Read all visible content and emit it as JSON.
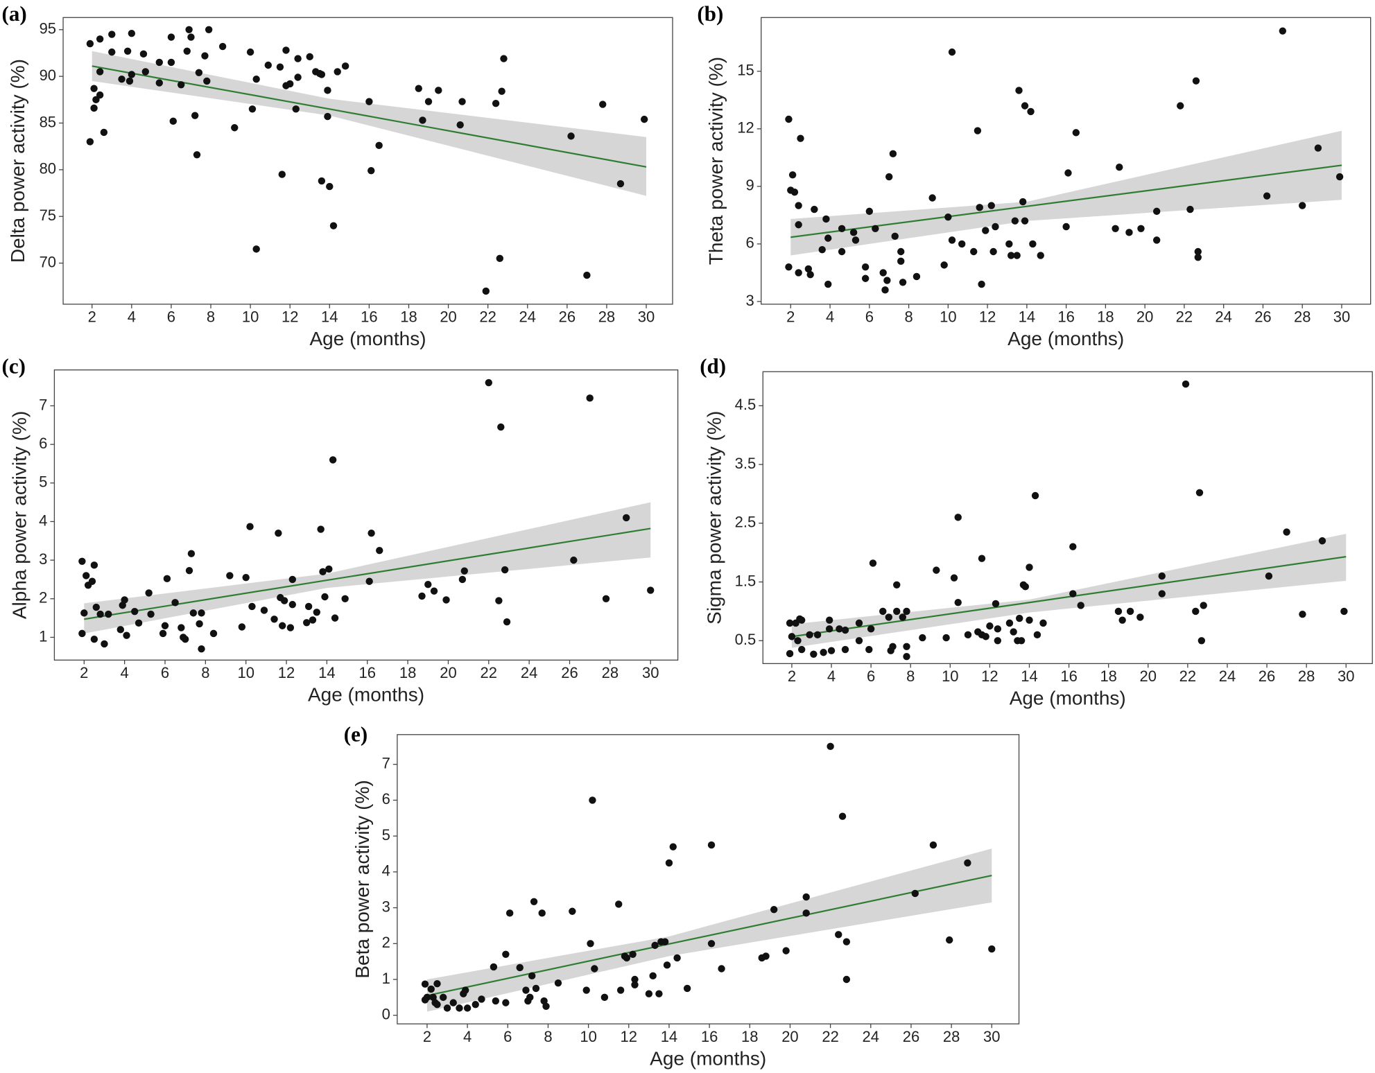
{
  "chart_data": [
    {
      "type": "scatter",
      "label": "(a)",
      "xlabel": "Age (months)",
      "ylabel": "Delta power activity (%)",
      "color": "#111111",
      "xlim": [
        0.54,
        31.33
      ],
      "ylim": [
        65.6,
        96.3
      ],
      "xticks": [
        2,
        4,
        6,
        8,
        10,
        12,
        14,
        16,
        18,
        20,
        22,
        24,
        26,
        28,
        30
      ],
      "yticks": [
        70,
        75,
        80,
        85,
        90,
        95
      ],
      "x": [
        1.9,
        1.9,
        2.1,
        2.1,
        2.2,
        2.4,
        2.4,
        2.4,
        2.6,
        3,
        3,
        3.5,
        3.8,
        3.9,
        4,
        4,
        4.6,
        4.7,
        5.4,
        5.4,
        6,
        6,
        6.1,
        6.5,
        6.8,
        6.9,
        7,
        7.2,
        7.3,
        7.4,
        7.7,
        7.8,
        7.9,
        8.6,
        9.2,
        10,
        10.1,
        10.3,
        10.3,
        10.9,
        11.5,
        11.6,
        11.8,
        11.8,
        12,
        12.3,
        12.4,
        12.4,
        13,
        13.3,
        13.5,
        13.6,
        13.6,
        13.9,
        13.9,
        14,
        14.2,
        14.4,
        14.8,
        16,
        16.1,
        16.5,
        18.5,
        18.7,
        19,
        19.5,
        20.6,
        20.7,
        21.9,
        22.4,
        22.6,
        22.7,
        22.8,
        26.2,
        27,
        27.8,
        28.7,
        29.9
      ],
      "values": [
        93.5,
        83,
        88.7,
        86.6,
        87.5,
        94,
        90.5,
        88,
        84,
        94.5,
        92.6,
        89.7,
        92.7,
        89.5,
        90.2,
        94.6,
        92.4,
        90.5,
        91.5,
        89.3,
        94.2,
        91.5,
        85.2,
        89.1,
        92.7,
        95,
        94.2,
        85.8,
        81.6,
        90.4,
        92.2,
        89.5,
        95,
        93.2,
        84.5,
        92.6,
        86.5,
        71.5,
        89.7,
        91.2,
        91,
        79.5,
        92.8,
        89,
        89.2,
        86.5,
        91.9,
        89.9,
        92.1,
        90.5,
        90.3,
        90.2,
        78.8,
        85.7,
        88.5,
        78.2,
        74,
        90.5,
        91.1,
        87.3,
        79.9,
        82.6,
        88.7,
        85.3,
        87.3,
        88.5,
        84.8,
        87.3,
        67,
        87.1,
        70.5,
        88.4,
        91.9,
        83.6,
        68.7,
        87,
        78.5,
        85.4
      ],
      "fit": {
        "x": [
          2,
          14,
          30
        ],
        "values": [
          91.1,
          86.5,
          80.3
        ],
        "lower": [
          89.5,
          85.8,
          77.2
        ],
        "upper": [
          92.7,
          87.6,
          83.5
        ],
        "color": "#2e7d32",
        "band_color": "#d6d6d6"
      }
    },
    {
      "type": "scatter",
      "label": "(b)",
      "xlabel": "Age (months)",
      "ylabel": "Theta power activity (%)",
      "color": "#111111",
      "xlim": [
        0.5,
        31.47
      ],
      "ylim": [
        2.86,
        17.8
      ],
      "xticks": [
        2,
        4,
        6,
        8,
        10,
        12,
        14,
        16,
        18,
        20,
        22,
        24,
        26,
        28,
        30
      ],
      "yticks": [
        3,
        6,
        9,
        12,
        15
      ],
      "x": [
        1.9,
        1.9,
        2,
        2.1,
        2.2,
        2.4,
        2.4,
        2.4,
        2.5,
        2.9,
        3,
        3.2,
        3.6,
        3.8,
        3.9,
        3.9,
        4.6,
        4.6,
        5.2,
        5.3,
        5.8,
        5.8,
        6,
        6.3,
        6.7,
        6.8,
        6.9,
        7,
        7.2,
        7.3,
        7.6,
        7.6,
        7.7,
        8.4,
        9.2,
        9.8,
        10,
        10.2,
        10.2,
        10.7,
        11.3,
        11.5,
        11.6,
        11.7,
        11.9,
        12.2,
        12.3,
        12.4,
        13.1,
        13.2,
        13.4,
        13.5,
        13.6,
        13.8,
        13.9,
        13.9,
        14.2,
        14.3,
        14.7,
        16,
        16.1,
        16.5,
        18.5,
        18.7,
        19.2,
        19.8,
        20.6,
        20.6,
        21.8,
        22.3,
        22.6,
        22.7,
        22.7,
        26.2,
        27,
        28,
        28.8,
        29.9
      ],
      "values": [
        12.5,
        4.8,
        8.8,
        9.6,
        8.7,
        7,
        8,
        4.5,
        11.5,
        4.7,
        4.4,
        7.8,
        5.7,
        7.3,
        6.3,
        3.9,
        6.8,
        5.6,
        6.6,
        6.2,
        4.2,
        4.8,
        7.7,
        6.8,
        4.5,
        3.6,
        4.1,
        9.5,
        10.7,
        6.4,
        5.6,
        5.1,
        4,
        4.3,
        8.4,
        4.9,
        7.4,
        6.2,
        16,
        6,
        5.6,
        11.9,
        7.9,
        3.9,
        6.7,
        8,
        5.6,
        6.9,
        6,
        5.4,
        7.2,
        5.4,
        14,
        8.2,
        7.2,
        13.2,
        12.9,
        6,
        5.4,
        6.9,
        9.7,
        11.8,
        6.8,
        10,
        6.6,
        6.8,
        6.2,
        7.7,
        13.2,
        7.8,
        14.5,
        5.6,
        5.3,
        8.5,
        17.1,
        8,
        11,
        9.5
      ],
      "fit": {
        "x": [
          2,
          14,
          30
        ],
        "values": [
          6.35,
          7.96,
          10.1
        ],
        "lower": [
          5.4,
          7.2,
          8.3
        ],
        "upper": [
          7.3,
          8.2,
          11.9
        ],
        "color": "#2e7d32",
        "band_color": "#d6d6d6"
      }
    },
    {
      "type": "scatter",
      "label": "(c)",
      "xlabel": "Age (months)",
      "ylabel": "Alpha power activity (%)",
      "color": "#111111",
      "xlim": [
        0.53,
        31.35
      ],
      "ylim": [
        0.41,
        7.93
      ],
      "xticks": [
        2,
        4,
        6,
        8,
        10,
        12,
        14,
        16,
        18,
        20,
        22,
        24,
        26,
        28,
        30
      ],
      "yticks": [
        1,
        2,
        3,
        4,
        5,
        6,
        7
      ],
      "x": [
        1.9,
        1.9,
        2,
        2.1,
        2.2,
        2.4,
        2.5,
        2.5,
        2.6,
        2.8,
        3,
        3.2,
        3.8,
        3.9,
        4,
        4.1,
        4.5,
        4.7,
        5.2,
        5.3,
        5.9,
        6,
        6.1,
        6.5,
        6.8,
        6.9,
        7,
        7.2,
        7.3,
        7.4,
        7.7,
        7.8,
        7.8,
        8.4,
        9.2,
        9.8,
        10,
        10.2,
        10.3,
        10.9,
        11.4,
        11.6,
        11.7,
        11.8,
        11.9,
        12.2,
        12.3,
        12.3,
        13,
        13.1,
        13.3,
        13.5,
        13.7,
        13.8,
        13.9,
        14.1,
        14.3,
        14.4,
        14.9,
        16.1,
        16.2,
        16.6,
        18.7,
        19,
        19.3,
        19.9,
        20.7,
        20.8,
        22,
        22.5,
        22.6,
        22.8,
        22.9,
        26.2,
        27,
        27.8,
        28.8,
        30
      ],
      "values": [
        2.97,
        1.1,
        1.63,
        2.6,
        2.35,
        2.45,
        2.87,
        0.95,
        1.78,
        1.6,
        0.83,
        1.6,
        1.2,
        1.83,
        1.97,
        1.05,
        1.67,
        1.37,
        2.15,
        1.6,
        1.1,
        1.3,
        2.52,
        1.9,
        1.25,
        1,
        0.95,
        2.73,
        3.17,
        1.63,
        1.35,
        0.7,
        1.63,
        1.1,
        2.6,
        1.27,
        2.55,
        3.87,
        1.8,
        1.7,
        1.47,
        3.7,
        2.03,
        1.3,
        1.95,
        1.25,
        2.5,
        1.85,
        1.38,
        1.8,
        1.45,
        1.65,
        3.8,
        2.7,
        2.05,
        2.77,
        5.6,
        1.5,
        2,
        2.45,
        3.7,
        3.25,
        2.07,
        2.37,
        2.2,
        1.97,
        2.5,
        2.72,
        7.6,
        1.95,
        6.45,
        2.75,
        1.4,
        3,
        7.2,
        2,
        4.1,
        2.22
      ],
      "fit": {
        "x": [
          2,
          14,
          30
        ],
        "values": [
          1.47,
          2.48,
          3.82
        ],
        "lower": [
          1.1,
          2.28,
          3.07
        ],
        "upper": [
          1.88,
          2.65,
          4.5
        ],
        "color": "#2e7d32",
        "band_color": "#d6d6d6"
      }
    },
    {
      "type": "scatter",
      "label": "(d)",
      "xlabel": "Age (months)",
      "ylabel": "Sigma power activity (%)",
      "color": "#111111",
      "xlim": [
        0.54,
        31.33
      ],
      "ylim": [
        0.11,
        5.08
      ],
      "xticks": [
        2,
        4,
        6,
        8,
        10,
        12,
        14,
        16,
        18,
        20,
        22,
        24,
        26,
        28,
        30
      ],
      "yticks": [
        0.5,
        1.5,
        2.5,
        3.5,
        4.5
      ],
      "x": [
        1.9,
        1.9,
        2,
        2.2,
        2.3,
        2.4,
        2.5,
        2.5,
        2.9,
        3.1,
        3.3,
        3.6,
        3.9,
        3.9,
        4,
        4.4,
        4.7,
        4.7,
        5.4,
        5.4,
        5.9,
        6,
        6.1,
        6.6,
        6.9,
        7,
        7.1,
        7.3,
        7.3,
        7.6,
        7.8,
        7.8,
        7.8,
        8.6,
        9.3,
        9.8,
        10.2,
        10.4,
        10.4,
        10.9,
        11.4,
        11.6,
        11.6,
        11.8,
        12,
        12.3,
        12.4,
        12.4,
        13,
        13.2,
        13.4,
        13.5,
        13.6,
        13.7,
        13.8,
        14,
        14,
        14.3,
        14.4,
        14.7,
        16.2,
        16.2,
        16.6,
        18.5,
        18.7,
        19.1,
        19.6,
        20.7,
        20.7,
        21.9,
        22.4,
        22.6,
        22.7,
        22.8,
        26.1,
        27,
        27.8,
        28.8,
        29.9
      ],
      "values": [
        0.8,
        0.28,
        0.57,
        0.8,
        0.5,
        0.87,
        0.85,
        0.35,
        0.6,
        0.27,
        0.6,
        0.3,
        0.85,
        0.7,
        0.33,
        0.7,
        0.68,
        0.35,
        0.8,
        0.5,
        0.35,
        0.7,
        1.82,
        1,
        0.9,
        0.33,
        0.4,
        1,
        1.45,
        0.9,
        1,
        0.4,
        0.23,
        0.55,
        1.7,
        0.55,
        1.57,
        1.15,
        2.6,
        0.6,
        0.65,
        1.9,
        0.6,
        0.57,
        0.75,
        1.13,
        0.5,
        0.7,
        0.8,
        0.65,
        0.5,
        0.88,
        0.5,
        1.45,
        1.42,
        0.85,
        1.75,
        2.97,
        0.6,
        0.8,
        1.3,
        2.1,
        1.1,
        1,
        0.85,
        1,
        0.9,
        1.3,
        1.6,
        4.87,
        1,
        3.02,
        0.5,
        1.1,
        1.6,
        2.35,
        0.95,
        2.2,
        1
      ],
      "fit": {
        "x": [
          2,
          14,
          30
        ],
        "values": [
          0.57,
          1.15,
          1.93
        ],
        "lower": [
          0.38,
          0.98,
          1.52
        ],
        "upper": [
          0.78,
          1.2,
          2.32
        ],
        "color": "#2e7d32",
        "band_color": "#d6d6d6"
      }
    },
    {
      "type": "scatter",
      "label": "(e)",
      "xlabel": "Age (months)",
      "ylabel": "Beta power activity (%)",
      "color": "#111111",
      "xlim": [
        0.52,
        31.35
      ],
      "ylim": [
        -0.24,
        7.83
      ],
      "xticks": [
        2,
        4,
        6,
        8,
        10,
        12,
        14,
        16,
        18,
        20,
        22,
        24,
        26,
        28,
        30
      ],
      "yticks": [
        0,
        1,
        2,
        3,
        4,
        5,
        6,
        7
      ],
      "x": [
        1.9,
        1.9,
        2,
        2.2,
        2.3,
        2.4,
        2.5,
        2.5,
        2.8,
        3,
        3.3,
        3.6,
        3.8,
        3.9,
        4,
        4.4,
        4.7,
        5.3,
        5.4,
        5.9,
        5.9,
        6.1,
        6.6,
        6.9,
        7,
        7.1,
        7.2,
        7.3,
        7.4,
        7.7,
        7.8,
        7.9,
        8.5,
        9.2,
        9.9,
        10.1,
        10.2,
        10.3,
        10.8,
        11.5,
        11.6,
        11.8,
        11.9,
        12.2,
        12.3,
        12.3,
        13,
        13.2,
        13.3,
        13.5,
        13.6,
        13.8,
        13.9,
        14,
        14.2,
        14.4,
        14.9,
        16.1,
        16.1,
        16.6,
        18.6,
        18.8,
        19.2,
        19.8,
        20.8,
        20.8,
        22,
        22.4,
        22.6,
        22.8,
        22.8,
        26.2,
        27.1,
        27.9,
        28.8,
        30
      ],
      "values": [
        0.87,
        0.43,
        0.5,
        0.73,
        0.5,
        0.35,
        0.88,
        0.3,
        0.5,
        0.2,
        0.35,
        0.2,
        0.6,
        0.7,
        0.2,
        0.3,
        0.45,
        1.35,
        0.4,
        0.35,
        1.7,
        2.85,
        1.33,
        0.7,
        0.4,
        0.5,
        1.1,
        3.17,
        0.75,
        2.85,
        0.4,
        0.25,
        0.9,
        2.9,
        0.7,
        2,
        6,
        1.3,
        0.5,
        3.1,
        0.7,
        1.65,
        1.6,
        1.7,
        1,
        0.85,
        0.6,
        1.1,
        1.95,
        0.6,
        2.05,
        2.05,
        1.4,
        4.25,
        4.7,
        1.6,
        0.75,
        4.75,
        2,
        1.3,
        1.6,
        1.65,
        2.95,
        1.8,
        3.3,
        2.85,
        7.5,
        2.25,
        5.55,
        2.05,
        1,
        3.4,
        4.75,
        2.1,
        4.25,
        1.85
      ],
      "fit": {
        "x": [
          2,
          14,
          30
        ],
        "values": [
          0.55,
          1.99,
          3.9
        ],
        "lower": [
          0.1,
          1.65,
          3.15
        ],
        "upper": [
          1,
          2.2,
          4.65
        ],
        "color": "#2e7d32",
        "band_color": "#d6d6d6"
      }
    }
  ]
}
